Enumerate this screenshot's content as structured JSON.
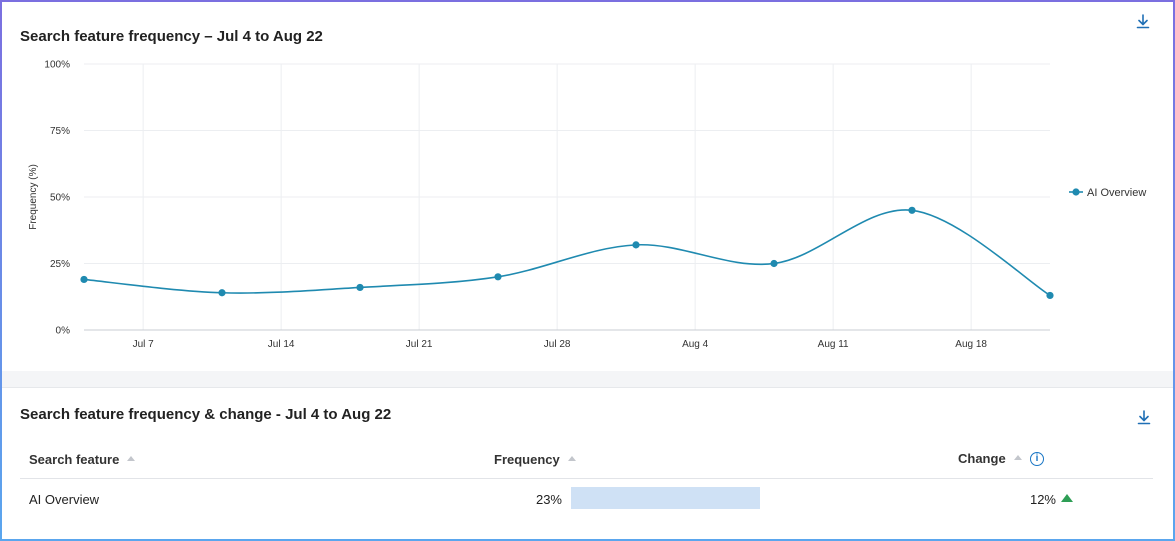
{
  "top_panel": {
    "title": "Search feature frequency – Jul 4 to Aug 22",
    "download_icon": "download-icon"
  },
  "chart_data": {
    "type": "line",
    "title": "Search feature frequency – Jul 4 to Aug 22",
    "xlabel": "",
    "ylabel": "Frequency (%)",
    "ylim": [
      0,
      100
    ],
    "y_ticks": [
      0,
      25,
      50,
      75,
      100
    ],
    "y_tick_labels": [
      "0%",
      "25%",
      "50%",
      "75%",
      "100%"
    ],
    "x_range_days": [
      0,
      49
    ],
    "x_ticks": [
      {
        "day": 3,
        "label": "Jul 7"
      },
      {
        "day": 10,
        "label": "Jul 14"
      },
      {
        "day": 17,
        "label": "Jul 21"
      },
      {
        "day": 24,
        "label": "Jul 28"
      },
      {
        "day": 31,
        "label": "Aug 4"
      },
      {
        "day": 38,
        "label": "Aug 11"
      },
      {
        "day": 45,
        "label": "Aug 18"
      }
    ],
    "grid": true,
    "legend_position": "right",
    "series": [
      {
        "name": "AI Overview",
        "color": "#1f8ab0",
        "x": [
          0,
          7,
          14,
          21,
          28,
          35,
          42,
          49
        ],
        "values": [
          19,
          14,
          16,
          20,
          32,
          25,
          45,
          13
        ]
      }
    ]
  },
  "bottom_panel": {
    "title": "Search feature frequency & change - Jul 4 to Aug 22",
    "download_icon": "download-icon",
    "columns": {
      "feature": "Search feature",
      "frequency": "Frequency",
      "change": "Change"
    },
    "info_icon_glyph": "i",
    "rows": [
      {
        "feature": "AI Overview",
        "frequency_label": "23%",
        "frequency_fraction": 0.23,
        "change_label": "12%",
        "change_direction": "up"
      }
    ],
    "colors": {
      "bar": "#cfe1f5",
      "up": "#2e9e55",
      "accent": "#1976c5"
    }
  }
}
